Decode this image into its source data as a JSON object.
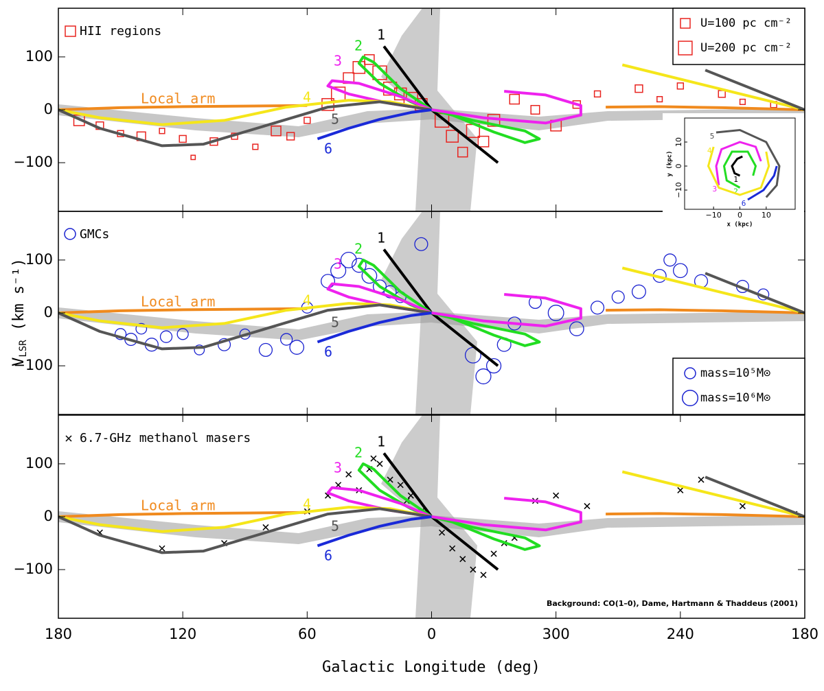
{
  "figure": {
    "xlabel": "Galactic Longitude (deg)",
    "ylabel": [
      "V",
      "LSR",
      " (km s⁻¹)"
    ],
    "credit": "Background: CO(1–0), Dame, Hartmann & Thaddeus (2001)"
  },
  "chart_data": [
    {
      "type": "scatter",
      "xlim": [
        180,
        -180
      ],
      "ylim": [
        -192,
        192
      ],
      "yticks": [
        {
          "value": -100,
          "label": "−100"
        },
        0,
        100
      ],
      "points": {
        "name": "HII regions",
        "marker": "square",
        "color": "#e8231f",
        "x": [
          170,
          160,
          150,
          140,
          130,
          120,
          115,
          105,
          95,
          85,
          75,
          68,
          60,
          50,
          45,
          40,
          35,
          30,
          25,
          20,
          15,
          10,
          5,
          -5,
          -10,
          -15,
          -20,
          -25,
          -30,
          -40,
          -50,
          -60,
          -70,
          -80,
          -100,
          -110,
          -120,
          -140,
          -150,
          -165
        ],
        "values": [
          -20,
          -30,
          -45,
          -50,
          -40,
          -55,
          -90,
          -60,
          -50,
          -70,
          -40,
          -50,
          -20,
          10,
          30,
          60,
          80,
          95,
          70,
          40,
          30,
          20,
          10,
          -20,
          -50,
          -80,
          -40,
          -60,
          -20,
          20,
          0,
          -30,
          10,
          30,
          40,
          20,
          45,
          30,
          15,
          10
        ],
        "sizes": [
          120,
          60,
          40,
          80,
          30,
          50,
          20,
          60,
          40,
          30,
          100,
          60,
          40,
          150,
          200,
          120,
          150,
          100,
          200,
          180,
          150,
          200,
          150,
          200,
          150,
          100,
          180,
          120,
          150,
          100,
          80,
          120,
          60,
          40,
          60,
          30,
          40,
          50,
          30,
          40
        ]
      },
      "size_legend": [
        {
          "label": "U=100 pc cm⁻²",
          "size": 100
        },
        {
          "label": "U=200 pc cm⁻²",
          "size": 200
        }
      ],
      "series": [
        {
          "name": "Local arm",
          "color": "#f08a1e",
          "x": [
            180,
            150,
            120,
            90,
            60,
            null,
            -84,
            -110,
            -140,
            -180
          ],
          "values": [
            0,
            4,
            6,
            7,
            8,
            null,
            5,
            6,
            4,
            0
          ]
        },
        {
          "name": "1",
          "color": "#000000",
          "x": [
            23,
            0,
            -32
          ],
          "values": [
            120,
            0,
            -100
          ]
        },
        {
          "name": "2",
          "color": "#22dd22",
          "x": [
            0,
            15,
            28,
            33,
            35,
            25,
            10,
            0,
            -20,
            -45,
            -52,
            -45,
            -30,
            -10,
            0
          ],
          "values": [
            0,
            40,
            90,
            100,
            88,
            50,
            15,
            0,
            -20,
            -40,
            -55,
            -62,
            -42,
            -10,
            0
          ]
        },
        {
          "name": "3",
          "color": "#ee22ee",
          "x": [
            0,
            15,
            35,
            48,
            50,
            40,
            20,
            0,
            -25,
            -55,
            -72,
            -72,
            -55,
            -35
          ],
          "values": [
            0,
            25,
            50,
            55,
            45,
            30,
            12,
            0,
            -15,
            -25,
            -10,
            8,
            28,
            35
          ]
        },
        {
          "name": "4",
          "color": "#f5e61a",
          "x": [
            180,
            160,
            130,
            100,
            70,
            40,
            20,
            0,
            null,
            -92,
            -180
          ],
          "values": [
            0,
            -15,
            -28,
            -20,
            5,
            18,
            15,
            0,
            null,
            85,
            0
          ]
        },
        {
          "name": "5",
          "color": "#555555",
          "x": [
            180,
            160,
            130,
            110,
            80,
            50,
            25,
            0,
            null,
            -132,
            -180
          ],
          "values": [
            0,
            -35,
            -68,
            -65,
            -30,
            5,
            15,
            0,
            null,
            75,
            0
          ]
        },
        {
          "name": "6",
          "color": "#1a2ad8",
          "x": [
            55,
            40,
            25,
            10,
            0
          ],
          "values": [
            -55,
            -35,
            -18,
            -5,
            0
          ]
        }
      ],
      "inset": {
        "xlabel": "x (kpc)",
        "ylabel": "y (kpc)",
        "xlim": [
          -21,
          21
        ],
        "ylim": [
          -18,
          20
        ],
        "xticks": [
          {
            "value": -10,
            "label": "−10"
          },
          0,
          10
        ],
        "yticks": [
          {
            "value": -10,
            "label": "−10"
          },
          0,
          10
        ],
        "series": [
          {
            "name": "1",
            "color": "#000000",
            "x": [
              0,
              -2,
              -3,
              -1,
              1
            ],
            "values": [
              -4,
              -3,
              0,
              3,
              4
            ]
          },
          {
            "name": "2",
            "color": "#22dd22",
            "x": [
              0,
              -5,
              -6,
              -3,
              3,
              6,
              5
            ],
            "values": [
              -9,
              -6,
              0,
              6,
              6,
              0,
              -4
            ]
          },
          {
            "name": "3",
            "color": "#ee22ee",
            "x": [
              -8,
              -9,
              -7,
              0,
              6,
              8
            ],
            "values": [
              -8,
              0,
              7,
              10,
              8,
              2
            ]
          },
          {
            "name": "4",
            "color": "#f5e61a",
            "x": [
              -10,
              -12,
              -8,
              0,
              8,
              11,
              10
            ],
            "values": [
              8,
              0,
              -9,
              -12,
              -9,
              0,
              6
            ]
          },
          {
            "name": "5",
            "color": "#555555",
            "x": [
              -9,
              0,
              10,
              15,
              14,
              10
            ],
            "values": [
              14,
              15,
              10,
              0,
              -8,
              -13
            ]
          },
          {
            "name": "6",
            "color": "#1a2ad8",
            "x": [
              3,
              9,
              13,
              14
            ],
            "values": [
              -14,
              -10,
              -4,
              0
            ]
          }
        ]
      }
    },
    {
      "type": "scatter",
      "xlim": [
        180,
        -180
      ],
      "ylim": [
        -192,
        192
      ],
      "yticks": [
        {
          "value": -100,
          "label": "−100"
        },
        0,
        100
      ],
      "points": {
        "name": "GMCs",
        "marker": "circle",
        "color": "#1a22d0",
        "x": [
          150,
          145,
          140,
          135,
          128,
          120,
          112,
          100,
          90,
          80,
          70,
          65,
          60,
          50,
          45,
          40,
          35,
          30,
          25,
          20,
          15,
          5,
          -20,
          -25,
          -30,
          -35,
          -40,
          -50,
          -60,
          -70,
          -80,
          -90,
          -100,
          -110,
          -115,
          -120,
          -130,
          -150,
          -160
        ],
        "values": [
          -40,
          -50,
          -30,
          -60,
          -45,
          -40,
          -70,
          -60,
          -40,
          -70,
          -50,
          -65,
          10,
          60,
          80,
          100,
          90,
          70,
          50,
          40,
          30,
          130,
          -80,
          -120,
          -100,
          -60,
          -20,
          20,
          0,
          -30,
          10,
          30,
          40,
          70,
          100,
          80,
          60,
          50,
          35
        ],
        "sizes": [
          100000,
          200000,
          80000,
          300000,
          150000,
          100000,
          50000,
          200000,
          60000,
          300000,
          150000,
          500000,
          100000,
          400000,
          800000,
          1000000,
          500000,
          700000,
          300000,
          200000,
          100000,
          300000,
          1000000,
          800000,
          600000,
          400000,
          300000,
          200000,
          1000000,
          500000,
          300000,
          200000,
          400000,
          300000,
          200000,
          500000,
          300000,
          200000,
          100000
        ]
      },
      "size_legend": [
        {
          "label": "mass=10⁵M⊙",
          "size": 100000
        },
        {
          "label": "mass=10⁶M⊙",
          "size": 1000000
        }
      ],
      "series": [
        {
          "name": "Local arm",
          "color": "#f08a1e",
          "x": [
            180,
            150,
            120,
            90,
            60,
            null,
            -84,
            -110,
            -140,
            -180
          ],
          "values": [
            0,
            4,
            6,
            7,
            8,
            null,
            5,
            6,
            4,
            0
          ]
        },
        {
          "name": "1",
          "color": "#000000",
          "x": [
            23,
            0,
            -32
          ],
          "values": [
            120,
            0,
            -100
          ]
        },
        {
          "name": "2",
          "color": "#22dd22",
          "x": [
            0,
            15,
            28,
            33,
            35,
            25,
            10,
            0,
            -20,
            -45,
            -52,
            -45,
            -30,
            -10,
            0
          ],
          "values": [
            0,
            40,
            90,
            100,
            88,
            50,
            15,
            0,
            -20,
            -40,
            -55,
            -62,
            -42,
            -10,
            0
          ]
        },
        {
          "name": "3",
          "color": "#ee22ee",
          "x": [
            0,
            15,
            35,
            48,
            50,
            40,
            20,
            0,
            -25,
            -55,
            -72,
            -72,
            -55,
            -35
          ],
          "values": [
            0,
            25,
            50,
            55,
            45,
            30,
            12,
            0,
            -15,
            -25,
            -10,
            8,
            28,
            35
          ]
        },
        {
          "name": "4",
          "color": "#f5e61a",
          "x": [
            180,
            160,
            130,
            100,
            70,
            40,
            20,
            0,
            null,
            -92,
            -180
          ],
          "values": [
            0,
            -15,
            -28,
            -20,
            5,
            18,
            15,
            0,
            null,
            85,
            0
          ]
        },
        {
          "name": "5",
          "color": "#555555",
          "x": [
            180,
            160,
            130,
            110,
            80,
            50,
            25,
            0,
            null,
            -132,
            -180
          ],
          "values": [
            0,
            -35,
            -68,
            -65,
            -30,
            5,
            15,
            0,
            null,
            75,
            0
          ]
        },
        {
          "name": "6",
          "color": "#1a2ad8",
          "x": [
            55,
            40,
            25,
            10,
            0
          ],
          "values": [
            -55,
            -35,
            -18,
            -5,
            0
          ]
        }
      ]
    },
    {
      "type": "scatter",
      "xlim": [
        180,
        -180
      ],
      "ylim": [
        -192,
        192
      ],
      "yticks": [
        {
          "value": -100,
          "label": "−100"
        },
        0,
        100
      ],
      "xticks": [
        180,
        120,
        60,
        0,
        {
          "value": -60,
          "label": "300"
        },
        {
          "value": -120,
          "label": "240"
        },
        {
          "value": -180,
          "label": "180"
        }
      ],
      "points": {
        "name": "6.7-GHz methanol masers",
        "marker": "cross",
        "color": "#000000",
        "x": [
          160,
          130,
          100,
          80,
          60,
          50,
          45,
          40,
          35,
          30,
          28,
          25,
          20,
          15,
          12,
          10,
          5,
          -5,
          -10,
          -15,
          -20,
          -25,
          -30,
          -35,
          -40,
          -50,
          -60,
          -75,
          -120,
          -130,
          -150,
          -175
        ],
        "values": [
          -30,
          -60,
          -50,
          -20,
          10,
          40,
          60,
          80,
          50,
          90,
          110,
          100,
          70,
          60,
          30,
          40,
          10,
          -30,
          -60,
          -80,
          -100,
          -110,
          -70,
          -50,
          -40,
          30,
          40,
          20,
          50,
          70,
          20,
          5
        ]
      },
      "series": [
        {
          "name": "Local arm",
          "color": "#f08a1e",
          "x": [
            180,
            150,
            120,
            90,
            60,
            null,
            -84,
            -110,
            -140,
            -180
          ],
          "values": [
            0,
            4,
            6,
            7,
            8,
            null,
            5,
            6,
            4,
            0
          ]
        },
        {
          "name": "1",
          "color": "#000000",
          "x": [
            23,
            0,
            -32
          ],
          "values": [
            120,
            0,
            -100
          ]
        },
        {
          "name": "2",
          "color": "#22dd22",
          "x": [
            0,
            15,
            28,
            33,
            35,
            25,
            10,
            0,
            -20,
            -45,
            -52,
            -45,
            -30,
            -10,
            0
          ],
          "values": [
            0,
            40,
            90,
            100,
            88,
            50,
            15,
            0,
            -20,
            -40,
            -55,
            -62,
            -42,
            -10,
            0
          ]
        },
        {
          "name": "3",
          "color": "#ee22ee",
          "x": [
            0,
            15,
            35,
            48,
            50,
            40,
            20,
            0,
            -25,
            -55,
            -72,
            -72,
            -55,
            -35
          ],
          "values": [
            0,
            25,
            50,
            55,
            45,
            30,
            12,
            0,
            -15,
            -25,
            -10,
            8,
            28,
            35
          ]
        },
        {
          "name": "4",
          "color": "#f5e61a",
          "x": [
            180,
            160,
            130,
            100,
            70,
            40,
            20,
            0,
            null,
            -92,
            -180
          ],
          "values": [
            0,
            -15,
            -28,
            -20,
            5,
            18,
            15,
            0,
            null,
            85,
            0
          ]
        },
        {
          "name": "5",
          "color": "#555555",
          "x": [
            180,
            160,
            130,
            110,
            80,
            50,
            25,
            0,
            null,
            -132,
            -180
          ],
          "values": [
            0,
            -35,
            -68,
            -65,
            -30,
            5,
            15,
            0,
            null,
            75,
            0
          ]
        },
        {
          "name": "6",
          "color": "#1a2ad8",
          "x": [
            55,
            40,
            25,
            10,
            0
          ],
          "values": [
            -55,
            -35,
            -18,
            -5,
            0
          ]
        }
      ]
    }
  ]
}
